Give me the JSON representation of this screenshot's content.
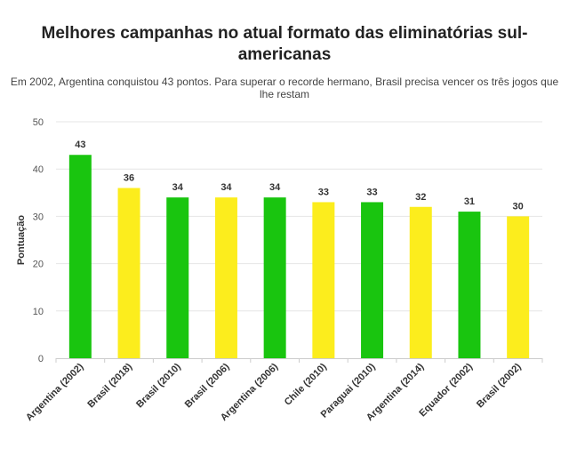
{
  "chart_data": {
    "type": "bar",
    "title": "Melhores campanhas no atual formato das eliminatórias sul-americanas",
    "subtitle": "Em 2002, Argentina conquistou 43 pontos. Para superar o recorde hermano, Brasil precisa vencer os três jogos que lhe restam",
    "ylabel": "Pontuação",
    "xlabel": "",
    "ylim": [
      0,
      50
    ],
    "yticks": [
      0,
      10,
      20,
      30,
      40,
      50
    ],
    "grid": true,
    "categories": [
      "Argentina (2002)",
      "Brasil (2018)",
      "Brasil (2010)",
      "Brasil (2006)",
      "Argentina (2006)",
      "Chile (2010)",
      "Paraguai (2010)",
      "Argentina (2014)",
      "Equador (2002)",
      "Brasil (2002)"
    ],
    "values": [
      43,
      36,
      34,
      34,
      34,
      33,
      33,
      32,
      31,
      30
    ],
    "colors": [
      "#19c50f",
      "#fced1d",
      "#19c50f",
      "#fced1d",
      "#19c50f",
      "#fced1d",
      "#19c50f",
      "#fced1d",
      "#19c50f",
      "#fced1d"
    ]
  }
}
